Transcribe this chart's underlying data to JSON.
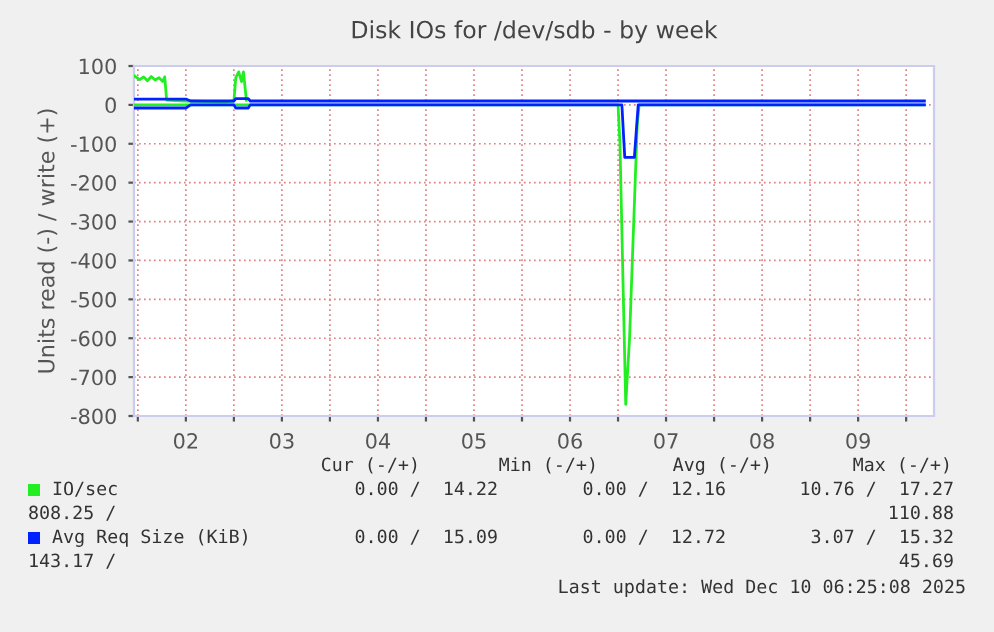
{
  "chart_data": {
    "type": "line",
    "title": "Disk IOs for /dev/sdb - by week",
    "ylabel": "Units read (-) / write (+)",
    "xlim": [
      1.96,
      10.29
    ],
    "ylim": [
      -800,
      100
    ],
    "xticks": [
      {
        "value": 2,
        "label": null
      },
      {
        "value": 2.5,
        "label": "02"
      },
      {
        "value": 3,
        "label": null
      },
      {
        "value": 3.5,
        "label": "03"
      },
      {
        "value": 4,
        "label": null
      },
      {
        "value": 4.5,
        "label": "04"
      },
      {
        "value": 5,
        "label": null
      },
      {
        "value": 5.5,
        "label": "05"
      },
      {
        "value": 6,
        "label": null
      },
      {
        "value": 6.5,
        "label": "06"
      },
      {
        "value": 7,
        "label": null
      },
      {
        "value": 7.5,
        "label": "07"
      },
      {
        "value": 8,
        "label": null
      },
      {
        "value": 8.5,
        "label": "08"
      },
      {
        "value": 9,
        "label": null
      },
      {
        "value": 9.5,
        "label": "09"
      },
      {
        "value": 10,
        "label": null
      }
    ],
    "yticks": [
      -800,
      -700,
      -600,
      -500,
      -400,
      -300,
      -200,
      -100,
      0,
      100
    ],
    "grid": true,
    "legend": "bottom",
    "series": [
      {
        "name": "IO/sec",
        "color": "#22ee22",
        "x": [
          1.96,
          2.02,
          2.06,
          2.1,
          2.14,
          2.18,
          2.22,
          2.26,
          2.28,
          2.3,
          2.5,
          2.9,
          3.0,
          3.02,
          3.05,
          3.08,
          3.1,
          3.13
        ],
        "values": [
          75,
          65,
          72,
          62,
          73,
          64,
          70,
          60,
          72,
          12,
          10,
          8,
          10,
          70,
          85,
          60,
          85,
          12
        ]
      },
      {
        "color": "#22ee22",
        "x": [
          1.96,
          7.0,
          7.02,
          7.08,
          7.12,
          7.2,
          7.22,
          10.19
        ],
        "values": [
          0,
          0,
          -100,
          -770,
          -600,
          -50,
          0,
          0
        ]
      },
      {
        "name": "Avg Req Size (KiB)",
        "color": "#0022ff",
        "x": [
          1.96,
          2.5,
          2.55,
          3.0,
          3.02,
          3.15,
          3.17,
          10.19
        ],
        "values": [
          15,
          15,
          10,
          10,
          16,
          16,
          10,
          10
        ]
      },
      {
        "color": "#0022ff",
        "x": [
          1.96,
          2.5,
          2.55,
          3.0,
          3.02,
          3.15,
          3.17,
          7.04,
          7.07,
          7.17,
          7.21,
          10.19
        ],
        "values": [
          -8,
          -8,
          0,
          0,
          -8,
          -8,
          0,
          0,
          -135,
          -135,
          0,
          0
        ]
      }
    ],
    "annotations": [
      "Cur (-/+)",
      "Min (-/+)",
      "Avg (-/+)",
      "Max (-/+)",
      "0.00 /  14.22",
      "0.00 /  12.16",
      "10.76 /  17.27",
      "808.25 /",
      "110.88",
      "0.00 /  15.09",
      "0.00 /  12.72",
      "3.07 /  15.32",
      "143.17 /",
      "45.69",
      "Last update: Wed Dec 10 06:25:08 2025"
    ]
  }
}
